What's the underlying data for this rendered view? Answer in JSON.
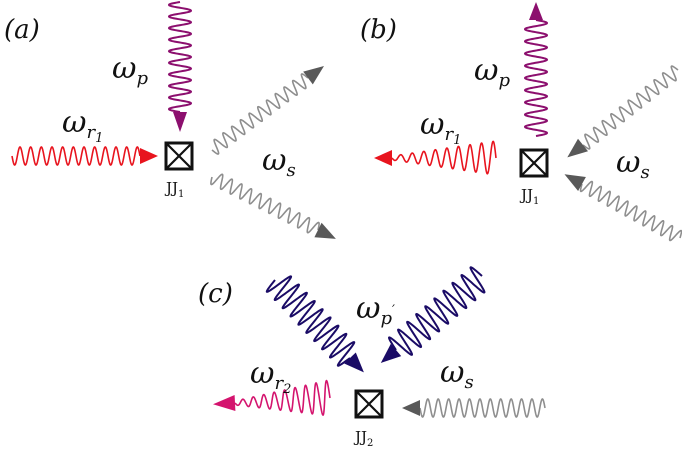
{
  "colors": {
    "red": "#e8141e",
    "purple": "#8c0f6e",
    "gray": "#8e8e8e",
    "gray_head": "#595959",
    "navy": "#1a0b66",
    "magenta": "#d4146e",
    "junction": "#111111"
  },
  "panels": {
    "a": {
      "label": "(a)",
      "junction": {
        "base": "JJ",
        "sub": "1"
      }
    },
    "b": {
      "label": "(b)",
      "junction": {
        "base": "JJ",
        "sub": "1"
      }
    },
    "c": {
      "label": "(c)",
      "junction": {
        "base": "JJ",
        "sub": "2"
      }
    }
  },
  "labels": {
    "omega": "ω",
    "p": "p",
    "s": "s",
    "r": "r",
    "one": "1",
    "two": "2",
    "prime": "′"
  }
}
